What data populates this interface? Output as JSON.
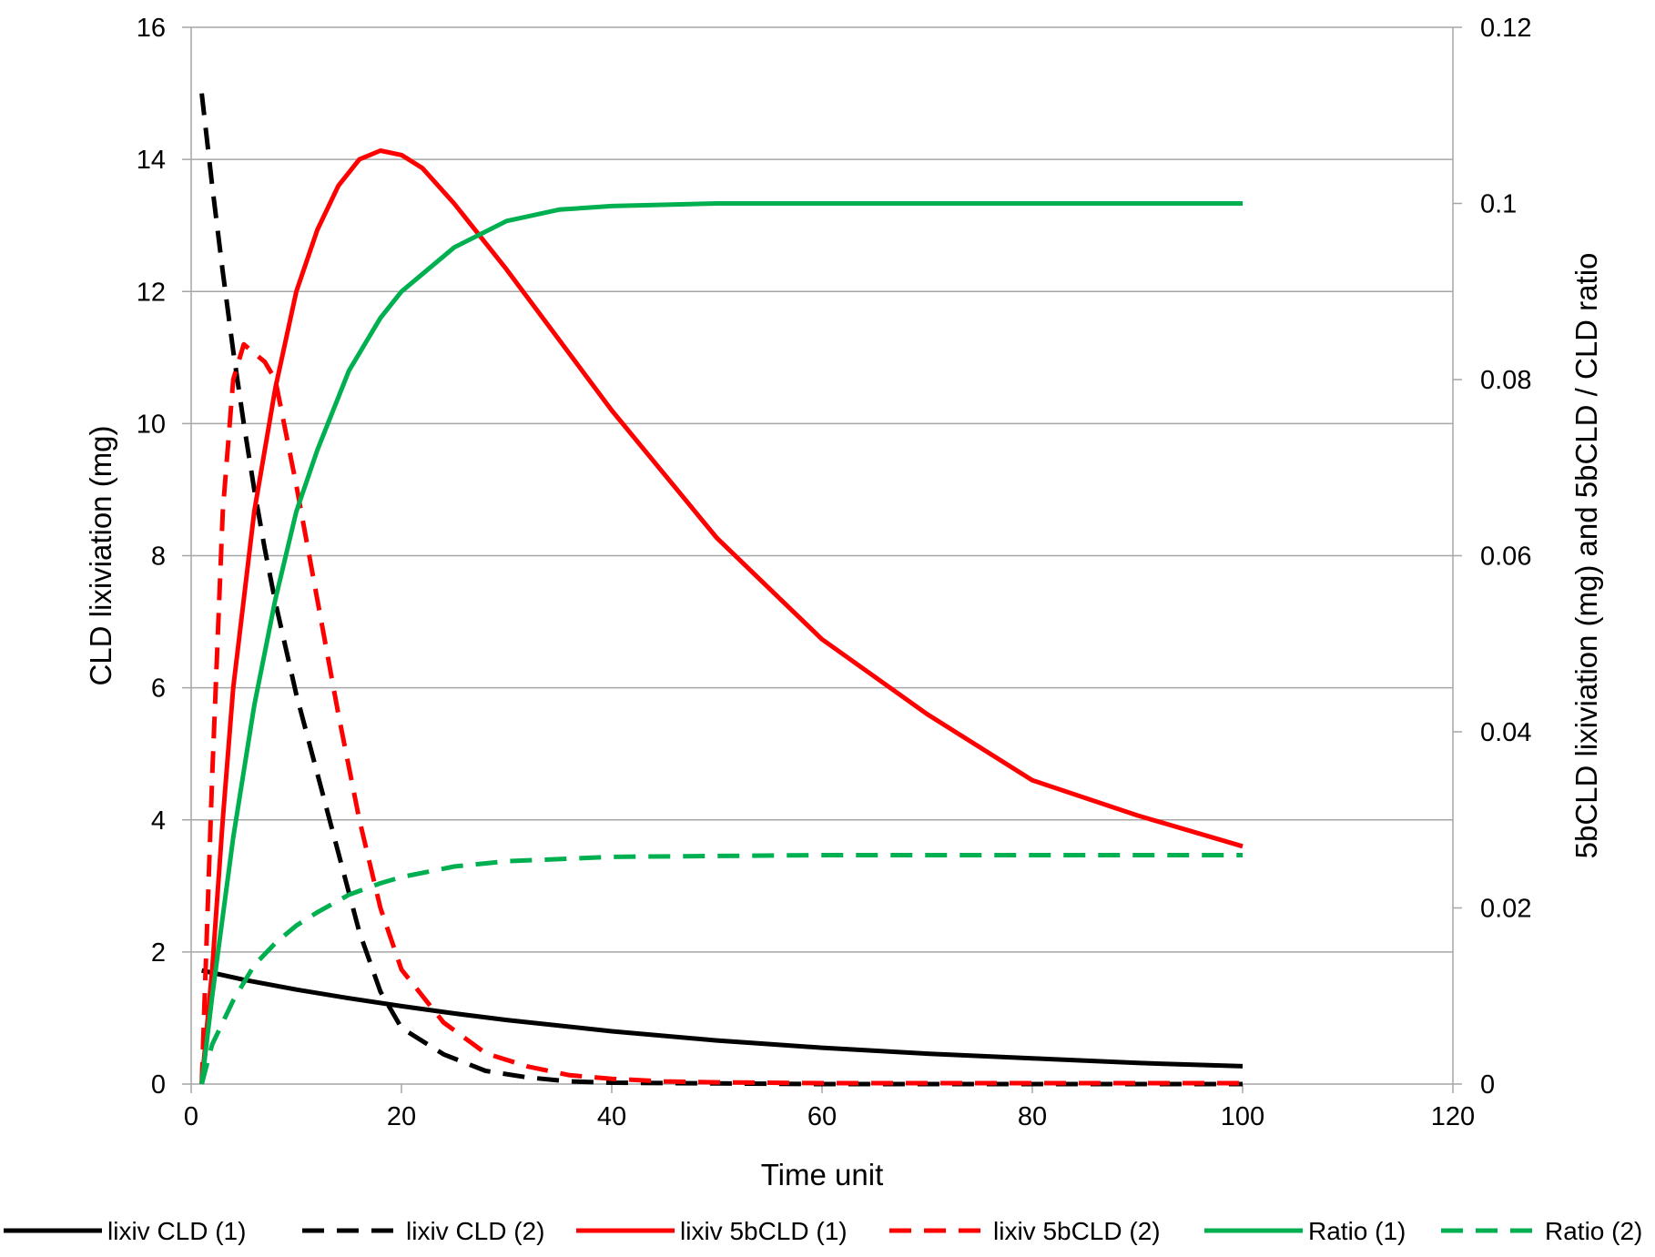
{
  "chart_data": {
    "type": "line",
    "xlabel": "Time unit",
    "ylabel_left": "CLD lixiviation (mg)",
    "ylabel_right": "5bCLD lixiviation (mg) and 5bCLD / CLD ratio",
    "xlim": [
      0,
      120
    ],
    "xticks": [
      0,
      20,
      40,
      60,
      80,
      100,
      120
    ],
    "ylim_left": [
      0,
      16
    ],
    "yticks_left": [
      0,
      2,
      4,
      6,
      8,
      10,
      12,
      14,
      16
    ],
    "ylim_right": [
      0,
      0.12
    ],
    "yticks_right": [
      "0",
      "0.02",
      "0.04",
      "0.06",
      "0.08",
      "0.1",
      "0.12"
    ],
    "grid": "horizontal",
    "legend_position": "bottom",
    "series": [
      {
        "name": "lixiv CLD (1)",
        "color": "#000000",
        "dash": "solid",
        "axis": "left",
        "x": [
          1,
          5,
          10,
          15,
          20,
          25,
          30,
          40,
          50,
          60,
          70,
          80,
          90,
          100
        ],
        "y": [
          1.72,
          1.58,
          1.43,
          1.3,
          1.18,
          1.07,
          0.97,
          0.8,
          0.66,
          0.55,
          0.46,
          0.39,
          0.32,
          0.27
        ]
      },
      {
        "name": "lixiv CLD  (2)",
        "color": "#000000",
        "dash": "dashed",
        "axis": "left",
        "x": [
          1,
          2,
          3,
          4,
          5,
          6,
          7,
          8,
          10,
          12,
          14,
          16,
          18,
          20,
          24,
          28,
          32,
          36,
          40,
          50,
          60,
          80,
          100
        ],
        "y": [
          15.0,
          13.6,
          12.3,
          11.1,
          10.0,
          9.0,
          8.1,
          7.3,
          5.9,
          4.7,
          3.5,
          2.3,
          1.4,
          0.85,
          0.45,
          0.2,
          0.1,
          0.04,
          0.02,
          0.01,
          0,
          0,
          0
        ]
      },
      {
        "name": "lixiv 5bCLD  (1)",
        "color": "#ff0000",
        "dash": "solid",
        "axis": "right",
        "x": [
          1,
          2,
          3,
          4,
          6,
          8,
          10,
          12,
          14,
          16,
          18,
          20,
          22,
          25,
          30,
          35,
          40,
          50,
          60,
          70,
          80,
          90,
          100
        ],
        "y": [
          0,
          0.013,
          0.03,
          0.045,
          0.065,
          0.079,
          0.09,
          0.097,
          0.102,
          0.105,
          0.106,
          0.1055,
          0.104,
          0.1,
          0.0925,
          0.0845,
          0.0765,
          0.062,
          0.0505,
          0.042,
          0.0345,
          0.0305,
          0.027
        ]
      },
      {
        "name": "lixiv 5bCLD  (2)",
        "color": "#ff0000",
        "dash": "dashed",
        "axis": "right",
        "x": [
          1,
          2,
          3,
          4,
          5,
          6,
          7,
          8,
          10,
          12,
          14,
          16,
          18,
          20,
          24,
          28,
          32,
          36,
          40,
          45,
          50,
          60,
          80,
          100
        ],
        "y": [
          0,
          0.035,
          0.065,
          0.08,
          0.084,
          0.083,
          0.082,
          0.08,
          0.068,
          0.055,
          0.042,
          0.03,
          0.02,
          0.013,
          0.007,
          0.0035,
          0.002,
          0.001,
          0.0006,
          0.0003,
          0.0002,
          0.0001,
          0.0001,
          0.0001
        ]
      },
      {
        "name": "Ratio  (1)",
        "color": "#00b050",
        "dash": "solid",
        "axis": "right",
        "x": [
          1,
          2,
          4,
          6,
          8,
          10,
          12,
          15,
          18,
          20,
          25,
          30,
          35,
          40,
          50,
          60,
          70,
          80,
          90,
          100
        ],
        "y": [
          0,
          0.01,
          0.028,
          0.043,
          0.055,
          0.065,
          0.072,
          0.081,
          0.087,
          0.09,
          0.095,
          0.098,
          0.0993,
          0.0997,
          0.1,
          0.1,
          0.1,
          0.1,
          0.1,
          0.1
        ]
      },
      {
        "name": "Ratio  (2)",
        "color": "#00b050",
        "dash": "dashed",
        "axis": "right",
        "x": [
          1,
          2,
          4,
          6,
          8,
          10,
          12,
          15,
          18,
          20,
          25,
          30,
          40,
          50,
          60,
          80,
          100
        ],
        "y": [
          0,
          0.0045,
          0.0095,
          0.0135,
          0.016,
          0.018,
          0.0195,
          0.0215,
          0.0228,
          0.0235,
          0.0247,
          0.0253,
          0.0258,
          0.0259,
          0.026,
          0.026,
          0.026
        ]
      }
    ]
  }
}
